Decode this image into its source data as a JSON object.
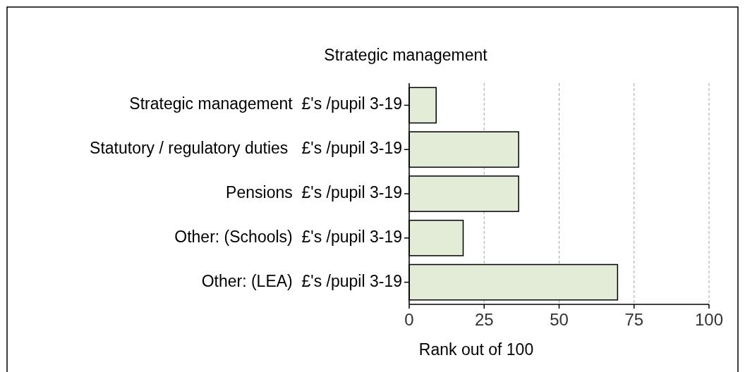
{
  "chart_data": {
    "type": "bar",
    "orientation": "horizontal",
    "title": "Strategic management",
    "xlabel": "Rank out of 100",
    "categories": [
      "Strategic management  £'s /pupil 3-19",
      "Statutory / regulatory duties   £'s /pupil 3-19",
      "Pensions  £'s /pupil 3-19",
      "Other: (Schools)  £'s /pupil 3-19",
      "Other: (LEA)  £'s /pupil 3-19"
    ],
    "values": [
      9,
      36.5,
      36.5,
      18,
      69.5
    ],
    "color": "#e2ecd6",
    "xlim": [
      0,
      100
    ],
    "xticks": [
      0,
      25,
      50,
      75,
      100
    ],
    "grid": "x"
  }
}
